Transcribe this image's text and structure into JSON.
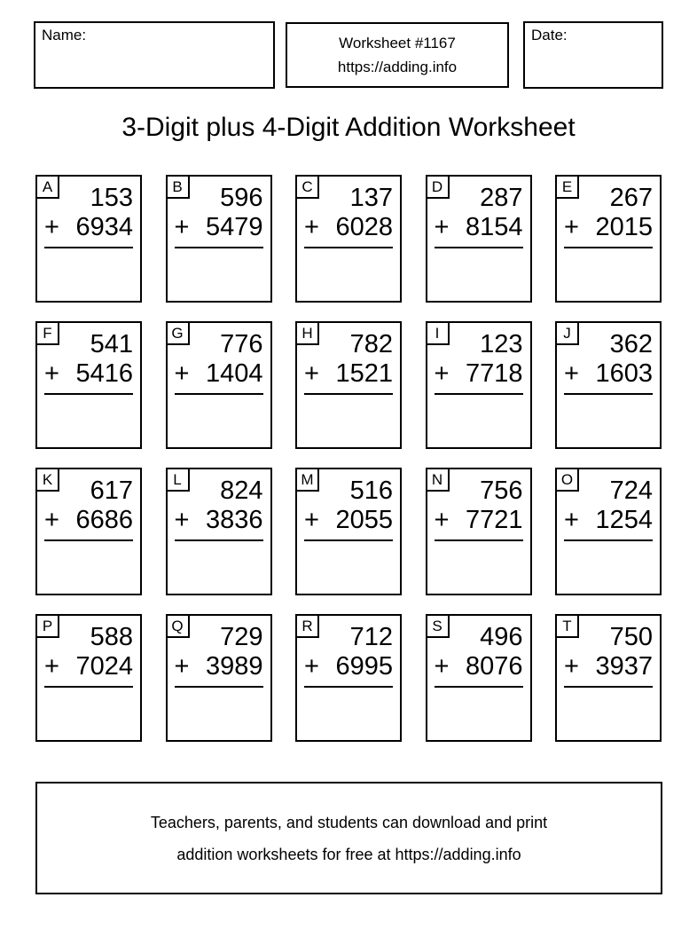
{
  "header": {
    "name_label": "Name:",
    "worksheet_number": "Worksheet #1167",
    "worksheet_url": "https://adding.info",
    "date_label": "Date:"
  },
  "title": "3-Digit plus 4-Digit Addition Worksheet",
  "problems": [
    {
      "label": "A",
      "operator": "+",
      "top_addend": "153",
      "bottom_addend": "6934"
    },
    {
      "label": "B",
      "operator": "+",
      "top_addend": "596",
      "bottom_addend": "5479"
    },
    {
      "label": "C",
      "operator": "+",
      "top_addend": "137",
      "bottom_addend": "6028"
    },
    {
      "label": "D",
      "operator": "+",
      "top_addend": "287",
      "bottom_addend": "8154"
    },
    {
      "label": "E",
      "operator": "+",
      "top_addend": "267",
      "bottom_addend": "2015"
    },
    {
      "label": "F",
      "operator": "+",
      "top_addend": "541",
      "bottom_addend": "5416"
    },
    {
      "label": "G",
      "operator": "+",
      "top_addend": "776",
      "bottom_addend": "1404"
    },
    {
      "label": "H",
      "operator": "+",
      "top_addend": "782",
      "bottom_addend": "1521"
    },
    {
      "label": "I",
      "operator": "+",
      "top_addend": "123",
      "bottom_addend": "7718"
    },
    {
      "label": "J",
      "operator": "+",
      "top_addend": "362",
      "bottom_addend": "1603"
    },
    {
      "label": "K",
      "operator": "+",
      "top_addend": "617",
      "bottom_addend": "6686"
    },
    {
      "label": "L",
      "operator": "+",
      "top_addend": "824",
      "bottom_addend": "3836"
    },
    {
      "label": "M",
      "operator": "+",
      "top_addend": "516",
      "bottom_addend": "2055"
    },
    {
      "label": "N",
      "operator": "+",
      "top_addend": "756",
      "bottom_addend": "7721"
    },
    {
      "label": "O",
      "operator": "+",
      "top_addend": "724",
      "bottom_addend": "1254"
    },
    {
      "label": "P",
      "operator": "+",
      "top_addend": "588",
      "bottom_addend": "7024"
    },
    {
      "label": "Q",
      "operator": "+",
      "top_addend": "729",
      "bottom_addend": "3989"
    },
    {
      "label": "R",
      "operator": "+",
      "top_addend": "712",
      "bottom_addend": "6995"
    },
    {
      "label": "S",
      "operator": "+",
      "top_addend": "496",
      "bottom_addend": "8076"
    },
    {
      "label": "T",
      "operator": "+",
      "top_addend": "750",
      "bottom_addend": "3937"
    }
  ],
  "footer": {
    "line1": "Teachers, parents, and students can download and print",
    "line2": "addition worksheets for free at https://adding.info"
  }
}
